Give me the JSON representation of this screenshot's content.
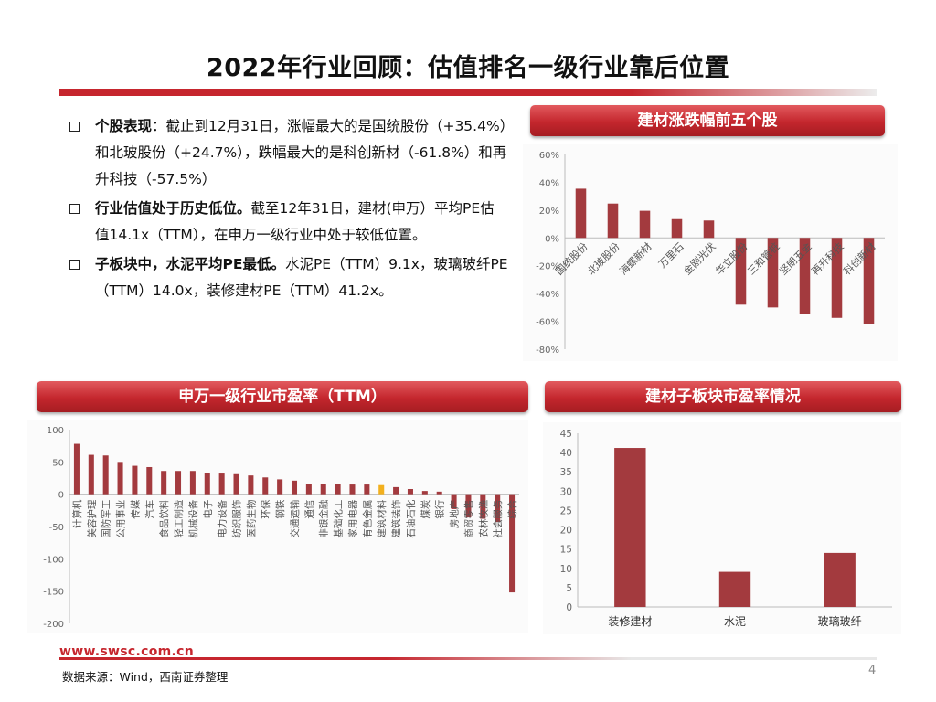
{
  "title": "2022年行业回顾：估值排名一级行业靠后位置",
  "bullets": [
    {
      "bold": "个股表现",
      "text": "：截止到12月31日，涨幅最大的是国统股份（+35.4%）和北玻股份（+24.7%），跌幅最大的是科创新材（-61.8%）和再升科技（-57.5%）"
    },
    {
      "bold": "行业估值处于历史低位。",
      "text": "截至12年31日，建材(申万）平均PE估值14.1x（TTM），在申万一级行业中处于较低位置。"
    },
    {
      "bold": "子板块中，水泥平均PE最低。",
      "text": "水泥PE（TTM）9.1x，玻璃玻纤PE（TTM）14.0x，装修建材PE（TTM）41.2x。"
    }
  ],
  "banners": {
    "top_right": "建材涨跌幅前五个股",
    "bottom_left": "申万一级行业市盈率（TTM）",
    "bottom_right": "建材子板块市盈率情况"
  },
  "footer": {
    "url": "www.swsc.com.cn",
    "source": "数据来源：Wind，西南证券整理",
    "page": "4"
  },
  "colors": {
    "bar": "#a33a3e",
    "highlight": "#f2b01e",
    "brand_red": "#c6262e"
  },
  "chart_data": [
    {
      "id": "stock-change",
      "type": "bar",
      "title": "建材涨跌幅前五个股",
      "categories": [
        "国统股份",
        "北玻股份",
        "海螺新材",
        "万里石",
        "金刚光伏",
        "华立股份",
        "三和管桩",
        "坚朗五金",
        "再升科技",
        "科创新材"
      ],
      "values": [
        35.4,
        24.7,
        19.5,
        13.5,
        12.5,
        -48,
        -50,
        -55,
        -57.5,
        -61.8
      ],
      "ylim": [
        -80,
        60
      ],
      "yticks": [
        -80,
        -60,
        -40,
        -20,
        0,
        20,
        40,
        60
      ],
      "ytick_labels": [
        "-80%",
        "-60%",
        "-40%",
        "-20%",
        "0%",
        "20%",
        "40%",
        "60%"
      ]
    },
    {
      "id": "industry-pe",
      "type": "bar",
      "title": "申万一级行业市盈率（TTM）",
      "categories": [
        "计算机",
        "美容护理",
        "国防军工",
        "公用事业",
        "传媒",
        "汽车",
        "食品饮料",
        "轻工制造",
        "机械设备",
        "电子",
        "电力设备",
        "纺织服饰",
        "医药生物",
        "环保",
        "钢铁",
        "交通运输",
        "通信",
        "非银金融",
        "基础化工",
        "家用电器",
        "有色金属",
        "建筑材料",
        "建筑装饰",
        "石油石化",
        "煤炭",
        "银行",
        "房地产",
        "商贸零售",
        "农林牧渔",
        "社会服务",
        "综合"
      ],
      "values": [
        78,
        61,
        60,
        50,
        44,
        42,
        36,
        36,
        36,
        33,
        32,
        31,
        29,
        26,
        23,
        21,
        16,
        16,
        16,
        15,
        15,
        14.1,
        11,
        8,
        5,
        4,
        -23,
        -36,
        -38,
        -43,
        -152
      ],
      "highlight_index": 21,
      "ylim": [
        -200,
        100
      ],
      "yticks": [
        -200,
        -150,
        -100,
        -50,
        0,
        50,
        100
      ],
      "ytick_labels": [
        "-200",
        "-150",
        "-100",
        "-50",
        "0",
        "50",
        "100"
      ]
    },
    {
      "id": "subsector-pe",
      "type": "bar",
      "title": "建材子板块市盈率情况",
      "categories": [
        "装修建材",
        "水泥",
        "玻璃玻纤"
      ],
      "values": [
        41.2,
        9.1,
        14.0
      ],
      "ylim": [
        0,
        45
      ],
      "yticks": [
        0,
        5,
        10,
        15,
        20,
        25,
        30,
        35,
        40,
        45
      ],
      "ytick_labels": [
        "0",
        "5",
        "10",
        "15",
        "20",
        "25",
        "30",
        "35",
        "40",
        "45"
      ]
    }
  ]
}
